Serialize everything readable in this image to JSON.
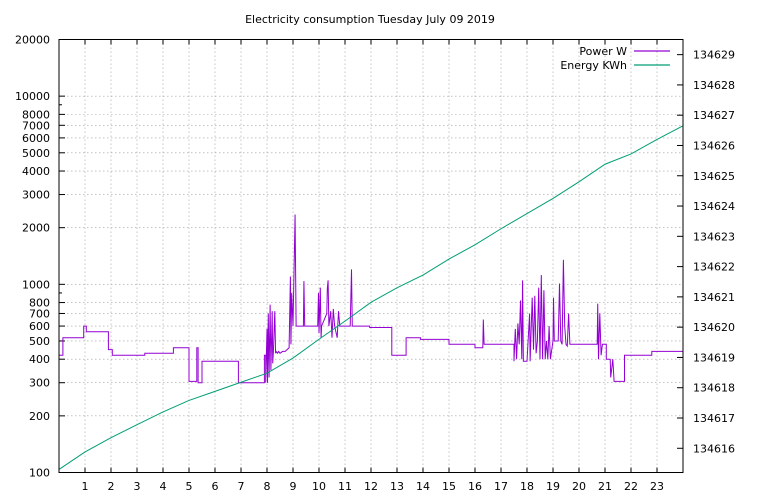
{
  "chart_data": {
    "type": "line",
    "title": "Electricity consumption Tuesday July 09 2019",
    "x_ticks": [
      1,
      2,
      3,
      4,
      5,
      6,
      7,
      8,
      9,
      10,
      11,
      12,
      13,
      14,
      15,
      16,
      17,
      18,
      19,
      20,
      21,
      22,
      23
    ],
    "xlim": [
      0,
      24
    ],
    "y_left": {
      "scale": "log",
      "lim": [
        100,
        20000
      ],
      "tick_labels": [
        "100",
        "200",
        "300",
        "400",
        "500",
        "600",
        "700",
        "800",
        "1000",
        "2000",
        "3000",
        "4000",
        "5000",
        "6000",
        "7000",
        "8000",
        "10000",
        "20000"
      ]
    },
    "y_right": {
      "lim": [
        134615.2,
        134629.5
      ],
      "tick_labels": [
        "134616",
        "134617",
        "134618",
        "134619",
        "134620",
        "134621",
        "134622",
        "134623",
        "134624",
        "134625",
        "134626",
        "134627",
        "134628",
        "134629"
      ]
    },
    "grid": true,
    "legend_position": "top-right",
    "series": [
      {
        "name": "Power W",
        "axis": "left",
        "color": "#9400d3",
        "points": [
          [
            0,
            420
          ],
          [
            0.15,
            420
          ],
          [
            0.15,
            520
          ],
          [
            0.95,
            520
          ],
          [
            0.95,
            600
          ],
          [
            1.05,
            600
          ],
          [
            1.05,
            560
          ],
          [
            1.9,
            560
          ],
          [
            1.9,
            450
          ],
          [
            2.05,
            450
          ],
          [
            2.05,
            420
          ],
          [
            3.3,
            420
          ],
          [
            3.3,
            430
          ],
          [
            4.4,
            430
          ],
          [
            4.4,
            460
          ],
          [
            5.0,
            460
          ],
          [
            5.0,
            305
          ],
          [
            5.3,
            305
          ],
          [
            5.3,
            460
          ],
          [
            5.35,
            460
          ],
          [
            5.35,
            300
          ],
          [
            5.5,
            300
          ],
          [
            5.5,
            390
          ],
          [
            6.9,
            390
          ],
          [
            6.9,
            300
          ],
          [
            7.9,
            300
          ],
          [
            7.9,
            420
          ],
          [
            7.95,
            420
          ],
          [
            7.95,
            300
          ],
          [
            8.0,
            580
          ],
          [
            8.02,
            300
          ],
          [
            8.05,
            700
          ],
          [
            8.08,
            320
          ],
          [
            8.12,
            780
          ],
          [
            8.15,
            350
          ],
          [
            8.2,
            720
          ],
          [
            8.22,
            380
          ],
          [
            8.25,
            450
          ],
          [
            8.3,
            720
          ],
          [
            8.33,
            430
          ],
          [
            8.35,
            440
          ],
          [
            8.4,
            430
          ],
          [
            8.45,
            440
          ],
          [
            8.5,
            430
          ],
          [
            8.6,
            440
          ],
          [
            8.7,
            440
          ],
          [
            8.85,
            460
          ],
          [
            8.9,
            1100
          ],
          [
            8.92,
            480
          ],
          [
            8.95,
            900
          ],
          [
            9.0,
            600
          ],
          [
            9.05,
            1400
          ],
          [
            9.08,
            2350
          ],
          [
            9.12,
            600
          ],
          [
            9.4,
            600
          ],
          [
            9.42,
            1040
          ],
          [
            9.45,
            600
          ],
          [
            9.95,
            600
          ],
          [
            9.98,
            900
          ],
          [
            10.0,
            550
          ],
          [
            10.05,
            960
          ],
          [
            10.08,
            520
          ],
          [
            10.1,
            600
          ],
          [
            10.3,
            700
          ],
          [
            10.32,
            950
          ],
          [
            10.35,
            1050
          ],
          [
            10.38,
            600
          ],
          [
            10.45,
            720
          ],
          [
            10.5,
            520
          ],
          [
            10.55,
            740
          ],
          [
            10.6,
            600
          ],
          [
            10.7,
            520
          ],
          [
            10.75,
            720
          ],
          [
            10.8,
            600
          ],
          [
            11.0,
            600
          ],
          [
            11.2,
            600
          ],
          [
            11.25,
            1200
          ],
          [
            11.28,
            600
          ],
          [
            11.95,
            600
          ],
          [
            11.95,
            590
          ],
          [
            12.8,
            590
          ],
          [
            12.8,
            420
          ],
          [
            13.35,
            420
          ],
          [
            13.35,
            520
          ],
          [
            13.9,
            520
          ],
          [
            13.9,
            510
          ],
          [
            15.0,
            510
          ],
          [
            15.0,
            480
          ],
          [
            16.0,
            480
          ],
          [
            16.0,
            460
          ],
          [
            16.3,
            460
          ],
          [
            16.32,
            650
          ],
          [
            16.35,
            480
          ],
          [
            17.5,
            480
          ],
          [
            17.5,
            390
          ],
          [
            17.55,
            580
          ],
          [
            17.6,
            400
          ],
          [
            17.65,
            620
          ],
          [
            17.7,
            480
          ],
          [
            17.75,
            820
          ],
          [
            17.8,
            400
          ],
          [
            17.83,
            1050
          ],
          [
            17.86,
            390
          ],
          [
            18.0,
            390
          ],
          [
            18.1,
            700
          ],
          [
            18.12,
            390
          ],
          [
            18.2,
            850
          ],
          [
            18.25,
            450
          ],
          [
            18.3,
            870
          ],
          [
            18.35,
            430
          ],
          [
            18.4,
            500
          ],
          [
            18.45,
            960
          ],
          [
            18.5,
            400
          ],
          [
            18.55,
            1120
          ],
          [
            18.6,
            400
          ],
          [
            18.65,
            930
          ],
          [
            18.7,
            400
          ],
          [
            18.75,
            500
          ],
          [
            18.8,
            400
          ],
          [
            18.85,
            600
          ],
          [
            18.9,
            400
          ],
          [
            19.0,
            500
          ],
          [
            19.02,
            850
          ],
          [
            19.05,
            500
          ],
          [
            19.2,
            500
          ],
          [
            19.25,
            1010
          ],
          [
            19.3,
            500
          ],
          [
            19.35,
            480
          ],
          [
            19.4,
            1350
          ],
          [
            19.45,
            600
          ],
          [
            19.5,
            480
          ],
          [
            19.55,
            470
          ],
          [
            19.6,
            700
          ],
          [
            19.65,
            480
          ],
          [
            20.7,
            480
          ],
          [
            20.72,
            790
          ],
          [
            20.75,
            400
          ],
          [
            20.8,
            700
          ],
          [
            20.85,
            420
          ],
          [
            20.9,
            480
          ],
          [
            21.05,
            480
          ],
          [
            21.05,
            400
          ],
          [
            21.2,
            400
          ],
          [
            21.22,
            320
          ],
          [
            21.3,
            400
          ],
          [
            21.35,
            305
          ],
          [
            21.75,
            305
          ],
          [
            21.75,
            420
          ],
          [
            22.8,
            420
          ],
          [
            22.8,
            440
          ],
          [
            24,
            440
          ]
        ]
      },
      {
        "name": "Energy KWh",
        "axis": "right",
        "color": "#009e73",
        "points": [
          [
            0,
            134615.3
          ],
          [
            1,
            134615.88
          ],
          [
            2,
            134616.35
          ],
          [
            3,
            134616.78
          ],
          [
            4,
            134617.2
          ],
          [
            5,
            134617.58
          ],
          [
            6,
            134617.88
          ],
          [
            7,
            134618.18
          ],
          [
            8,
            134618.48
          ],
          [
            9,
            134618.98
          ],
          [
            10,
            134619.6
          ],
          [
            11,
            134620.2
          ],
          [
            12,
            134620.82
          ],
          [
            13,
            134621.3
          ],
          [
            14,
            134621.72
          ],
          [
            15,
            134622.25
          ],
          [
            16,
            134622.72
          ],
          [
            17,
            134623.25
          ],
          [
            18,
            134623.75
          ],
          [
            19,
            134624.25
          ],
          [
            20,
            134624.8
          ],
          [
            21,
            134625.38
          ],
          [
            22,
            134625.72
          ],
          [
            23,
            134626.2
          ],
          [
            24,
            134626.65
          ]
        ]
      }
    ]
  }
}
